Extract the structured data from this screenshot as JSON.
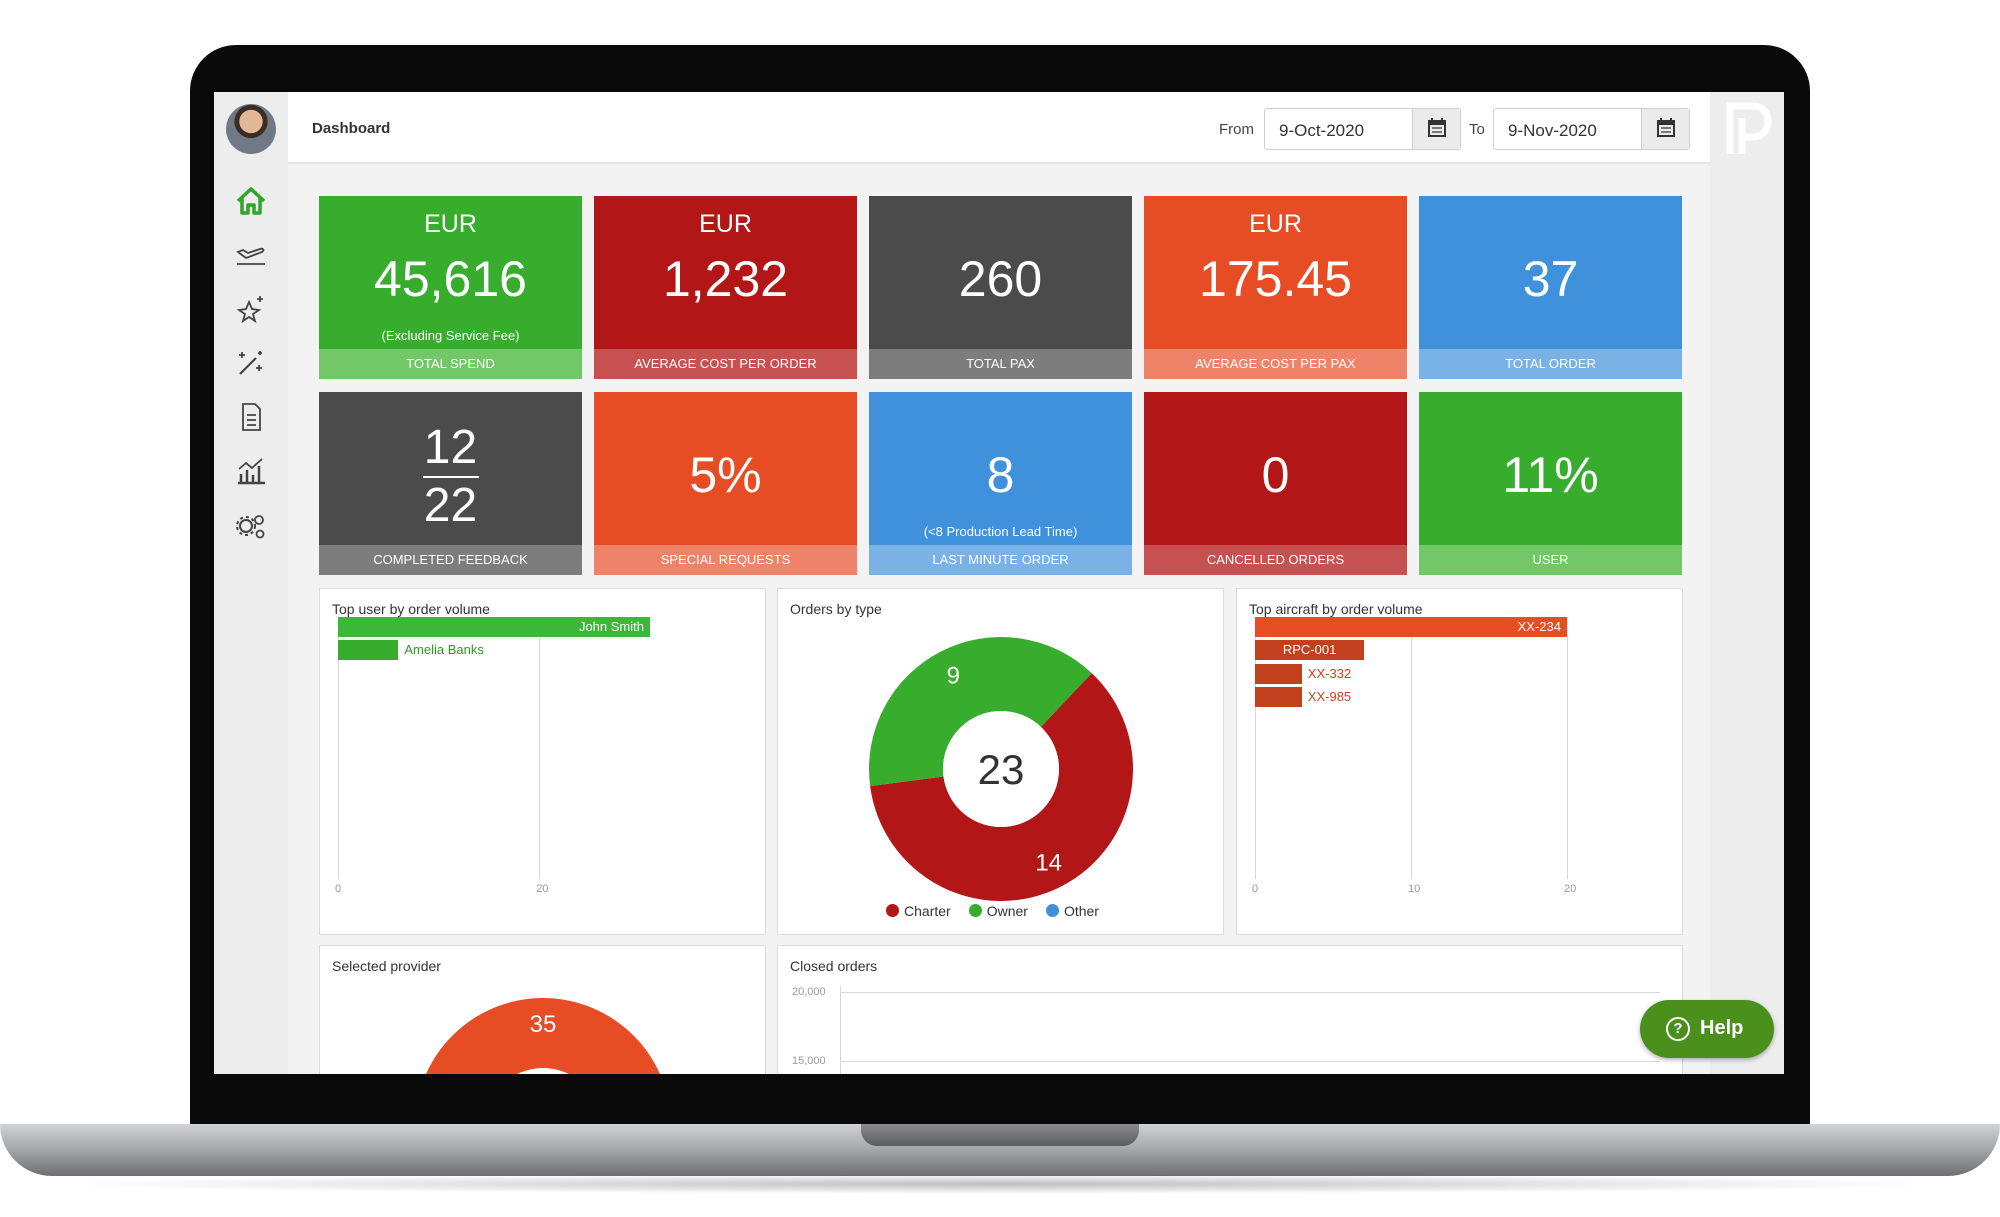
{
  "header": {
    "title": "Dashboard",
    "from_label": "From",
    "from_value": "9-Oct-2020",
    "to_label": "To",
    "to_value": "9-Nov-2020"
  },
  "sidebar": {
    "items": [
      {
        "icon": "home-icon",
        "active": true
      },
      {
        "icon": "plane-icon"
      },
      {
        "icon": "sparkle-star-icon"
      },
      {
        "icon": "magic-wand-icon"
      },
      {
        "icon": "document-icon"
      },
      {
        "icon": "analytics-icon"
      },
      {
        "icon": "settings-gears-icon"
      }
    ]
  },
  "tiles": [
    {
      "currency": "EUR",
      "value": "45,616",
      "note": "(Excluding Service Fee)",
      "label": "TOTAL SPEND",
      "color": "#38ac2d",
      "foot_color": "#72c766"
    },
    {
      "currency": "EUR",
      "value": "1,232",
      "label": "AVERAGE COST PER ORDER",
      "color": "#b31616",
      "foot_color": "#c75050"
    },
    {
      "value": "260",
      "label": "TOTAL PAX",
      "color": "#4b4b4b",
      "foot_color": "#7d7d7d"
    },
    {
      "currency": "EUR",
      "value": "175.45",
      "label": "AVERAGE COST PER PAX",
      "color": "#e64d25",
      "foot_color": "#ef836a"
    },
    {
      "value": "37",
      "label": "TOTAL ORDER",
      "color": "#3f91db",
      "foot_color": "#7ab2e6"
    },
    {
      "numerator": "12",
      "denominator": "22",
      "label": "COMPLETED FEEDBACK",
      "color": "#4b4b4b",
      "foot_color": "#7d7d7d"
    },
    {
      "value": "5%",
      "label": "SPECIAL REQUESTS",
      "color": "#e64d25",
      "foot_color": "#ef836a"
    },
    {
      "value": "8",
      "note": "(<8 Production Lead Time)",
      "label": "LAST MINUTE ORDER",
      "color": "#3f91db",
      "foot_color": "#7ab2e6"
    },
    {
      "value": "0",
      "label": "CANCELLED ORDERS",
      "color": "#b31616",
      "foot_color": "#c75050"
    },
    {
      "value": "11%",
      "label": "USER",
      "color": "#38ac2d",
      "foot_color": "#72c766"
    }
  ],
  "panels": {
    "top_user_title": "Top user by order volume",
    "orders_type_title": "Orders by type",
    "top_aircraft_title": "Top aircraft by order volume",
    "selected_provider_title": "Selected provider",
    "closed_orders_title": "Closed orders"
  },
  "chart_data": [
    {
      "type": "bar",
      "orientation": "horizontal",
      "categories": [
        "John Smith",
        "Amelia Banks"
      ],
      "values": [
        31,
        6
      ],
      "x_ticks": [
        "0",
        "20"
      ],
      "xlim": [
        0,
        31
      ],
      "color": "#38ac2d"
    },
    {
      "type": "pie",
      "donut": true,
      "total": "23",
      "slices": [
        {
          "label": "Charter",
          "value": 14,
          "color": "#b31616"
        },
        {
          "label": "Owner",
          "value": 9,
          "color": "#38ac2d"
        },
        {
          "label": "Other",
          "value": 0,
          "color": "#3f91db"
        }
      ],
      "value_labels": [
        "14",
        "9"
      ]
    },
    {
      "type": "bar",
      "orientation": "horizontal",
      "categories": [
        "XX-234",
        "RPC-001",
        "XX-332",
        "XX-985"
      ],
      "values": [
        20,
        7,
        3,
        3
      ],
      "x_ticks": [
        "0",
        "10",
        "20"
      ],
      "xlim": [
        0,
        20
      ],
      "color": "#c3401f"
    },
    {
      "type": "pie",
      "slices": [
        {
          "label": "",
          "value": 35,
          "color": "#e64d25"
        }
      ],
      "value_labels": [
        "35"
      ]
    },
    {
      "type": "line",
      "y_ticks": [
        "20,000",
        "15,000"
      ],
      "series": []
    }
  ],
  "help": {
    "label": "Help",
    "icon": "question-circle-icon"
  }
}
